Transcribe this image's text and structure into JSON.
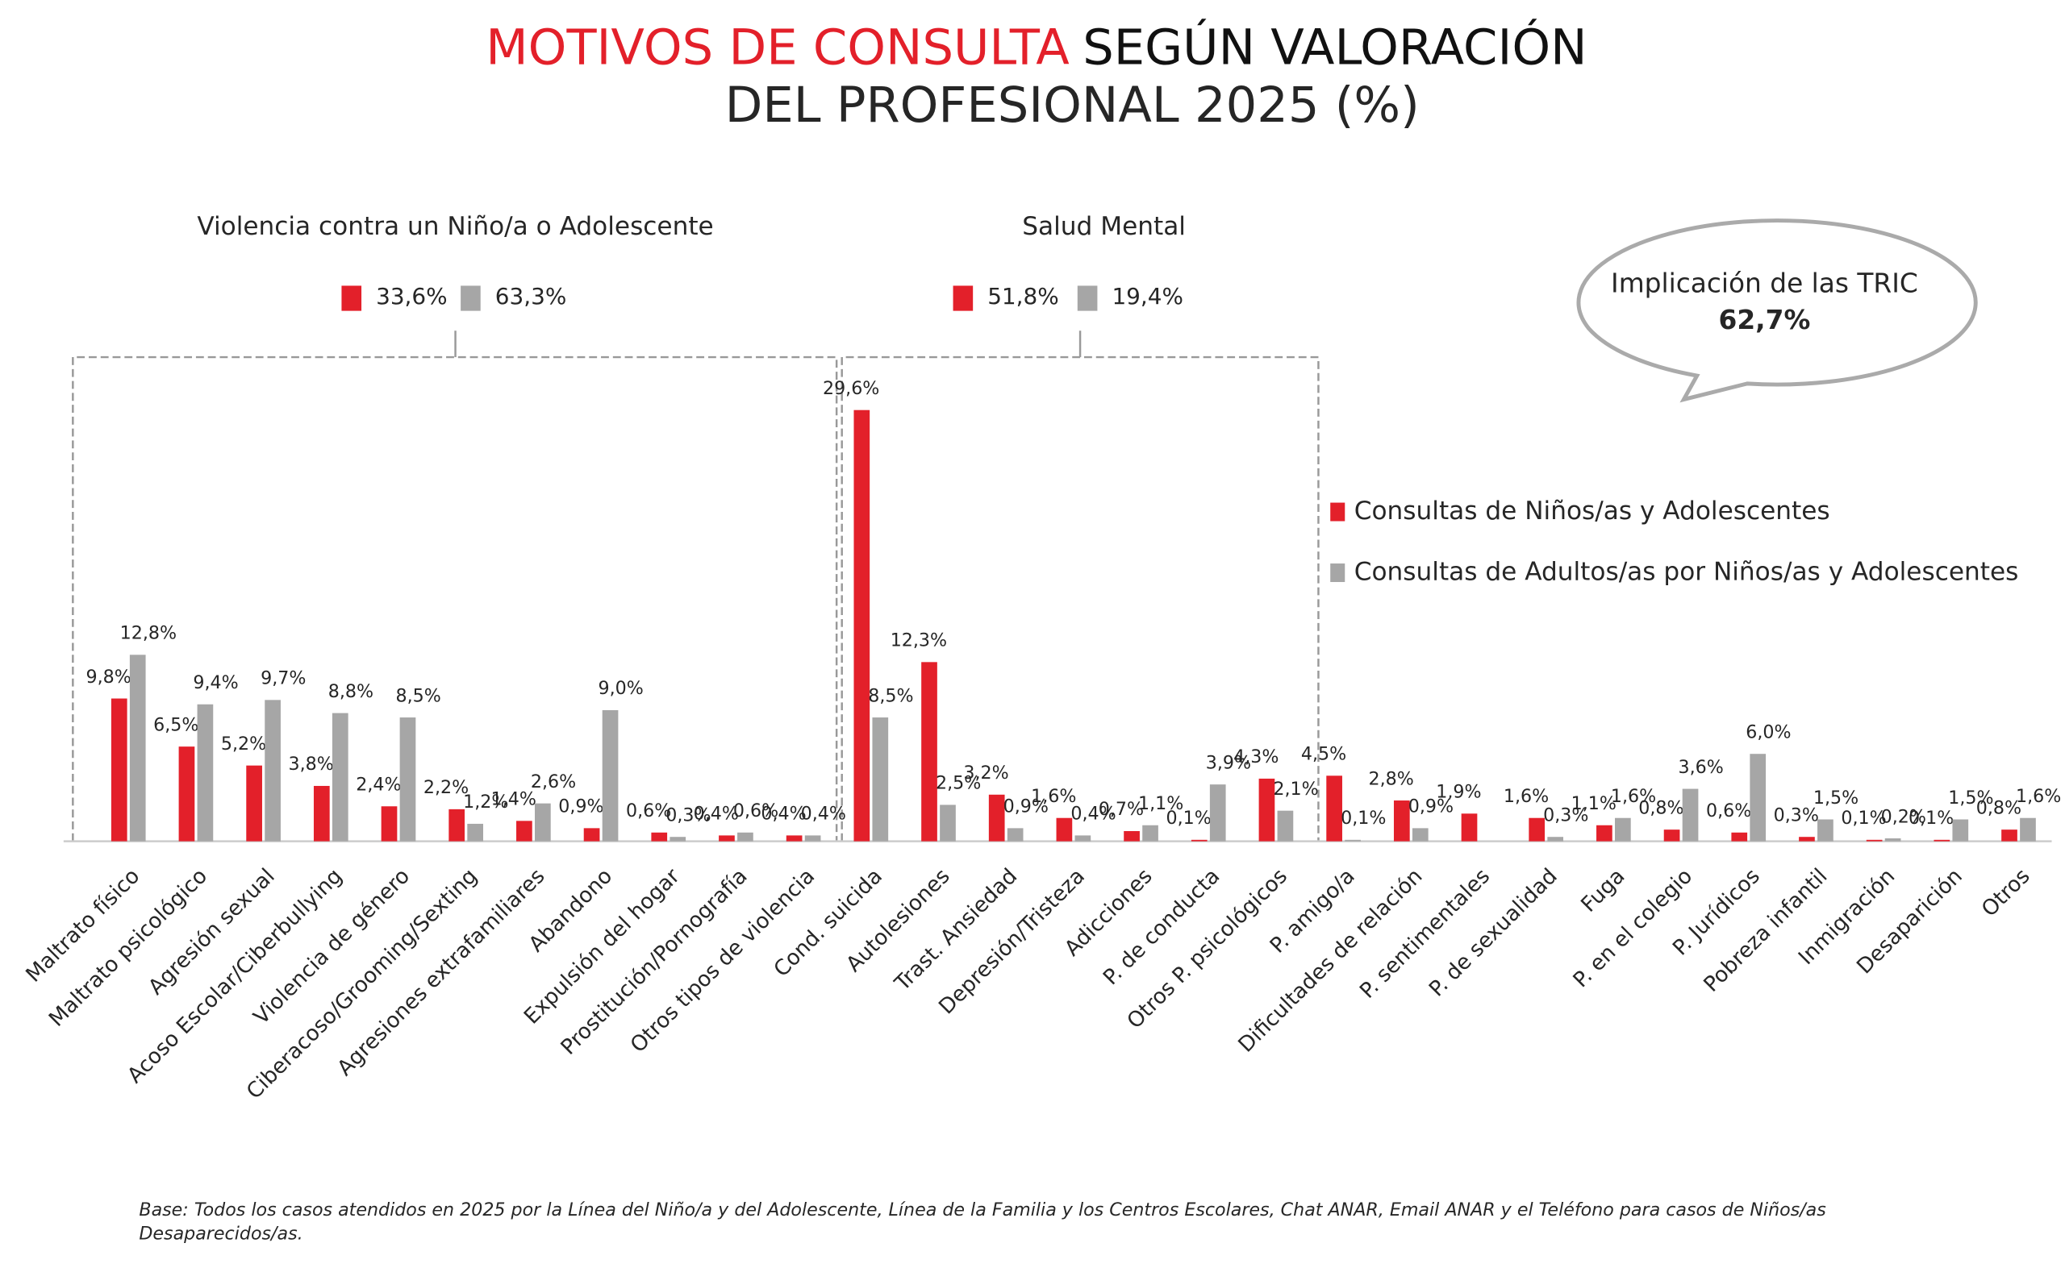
{
  "chart_data": {
    "type": "bar",
    "title": [
      "MOTIVOS DE CONSULTA",
      "SEGÚN VALORACIÓN",
      "DEL PROFESIONAL 2025 (%)"
    ],
    "categories": [
      "Maltrato físico",
      "Maltrato psicológico",
      "Agresión sexual",
      "Acoso Escolar/Ciberbullying",
      "Violencia de género",
      "Ciberacoso/Grooming/Sexting",
      "Agresiones extrafamiliares",
      "Abandono",
      "Expulsión del hogar",
      "Prostitución/Pornografía",
      "Otros tipos de violencia",
      "Cond. suicida",
      "Autolesiones",
      "Trast. Ansiedad",
      "Depresión/Tristeza",
      "Adicciones",
      "P. de conducta",
      "Otros P. psicológicos",
      "P. amigo/a",
      "Dificultades de relación",
      "P. sentimentales",
      "P. de sexualidad",
      "Fuga",
      "P. en el colegio",
      "P. Jurídicos",
      "Pobreza infantil",
      "Inmigración",
      "Desaparición",
      "Otros"
    ],
    "series": [
      {
        "name": "Consultas de Niños/as y Adolescentes",
        "color": "#e3202a",
        "label_color": "#e3202a",
        "values": [
          9.8,
          6.5,
          5.2,
          3.8,
          2.4,
          2.2,
          1.4,
          0.9,
          0.6,
          0.4,
          0.4,
          29.6,
          12.3,
          3.2,
          1.6,
          0.7,
          0.1,
          4.3,
          4.5,
          2.8,
          1.9,
          1.6,
          1.1,
          0.8,
          0.6,
          0.3,
          0.1,
          0.1,
          0.8
        ],
        "value_labels": [
          "9,8%",
          "6,5%",
          "5,2%",
          "3,8%",
          "2,4%",
          "2,2%",
          "1,4%",
          "0,9%",
          "0,6%",
          "0,4%",
          "0,4%",
          "29,6%",
          "12,3%",
          "3,2%",
          "1,6%",
          "0,7%",
          "0,1%",
          "4,3%",
          "4,5%",
          "2,8%",
          "1,9%",
          "1,6%",
          "1,1%",
          "0,8%",
          "0,6%",
          "0,3%",
          "0,1%",
          "0,1%",
          "0,8%"
        ]
      },
      {
        "name": "Consultas de Adultos/as por Niños/as y Adolescentes",
        "color": "#a6a6a6",
        "label_color": "#404040",
        "values": [
          12.8,
          9.4,
          9.7,
          8.8,
          8.5,
          1.2,
          2.6,
          9.0,
          0.3,
          0.6,
          0.4,
          8.5,
          2.5,
          0.9,
          0.4,
          1.1,
          3.9,
          2.1,
          0.1,
          0.9,
          null,
          0.3,
          1.6,
          3.6,
          6.0,
          1.5,
          0.2,
          1.5,
          1.6
        ],
        "value_labels": [
          "12,8%",
          "9,4%",
          "9,7%",
          "8,8%",
          "8,5%",
          "1,2%",
          "2,6%",
          "9,0%",
          "0,3%",
          "0,6%",
          "0,4%",
          "8,5%",
          "2,5%",
          "0,9%",
          "0,4%",
          "1,1%",
          "3,9%",
          "2,1%",
          "0,1%",
          "0,9%",
          null,
          "0,3%",
          "1,6%",
          "3,6%",
          "6,0%",
          "1,5%",
          "0,2%",
          "1,5%",
          "1,6%"
        ]
      }
    ],
    "groups": [
      {
        "name": "Violencia contra un Niño/a o Adolescente",
        "labels": [
          "33,6%",
          "63,3%"
        ]
      },
      {
        "name": "Salud Mental",
        "labels": [
          "51,8%",
          "19,4%"
        ]
      }
    ],
    "callout": {
      "title": "Implicación de las TRIC",
      "value": "62,7%"
    },
    "footnote": "Base: Todos los casos atendidos en 2025 por la Línea del Niño/a y del Adolescente, Línea de la Familia y los Centros Escolares, Chat ANAR, Email ANAR y el Teléfono para casos de Niños/as Desaparecidos/as."
  }
}
